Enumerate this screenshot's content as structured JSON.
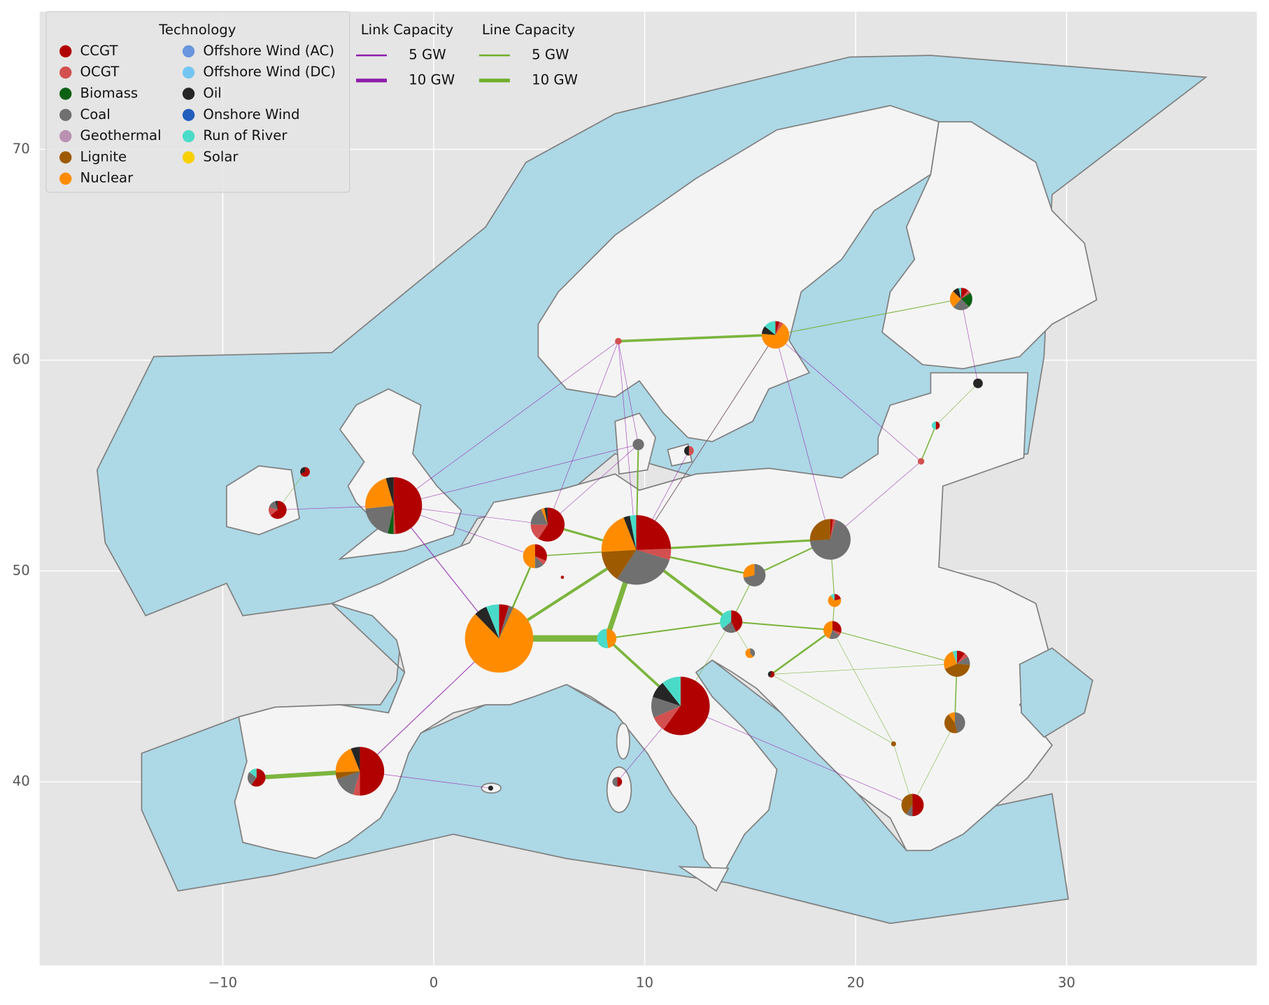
{
  "chart_data": {
    "type": "pie-map",
    "xlim": [
      -18.68,
      39.02
    ],
    "ylim": [
      31.29,
      76.53
    ],
    "xticks": [
      {
        "value": -10,
        "label": "−10"
      },
      0,
      10,
      20,
      30
    ],
    "yticks": [
      40,
      50,
      60,
      70
    ],
    "grid": true,
    "legend_title": "Technology",
    "technologies": [
      {
        "name": "CCGT",
        "color": "#b20101"
      },
      {
        "name": "OCGT",
        "color": "#d35050"
      },
      {
        "name": "Biomass",
        "color": "#0c6013"
      },
      {
        "name": "Coal",
        "color": "#707070"
      },
      {
        "name": "Geothermal",
        "color": "#ba91b1"
      },
      {
        "name": "Lignite",
        "color": "#9e5a01"
      },
      {
        "name": "Nuclear",
        "color": "#ff8c00"
      },
      {
        "name": "Offshore Wind (AC)",
        "color": "#6895dd"
      },
      {
        "name": "Offshore Wind (DC)",
        "color": "#74c6f2"
      },
      {
        "name": "Oil",
        "color": "#262626"
      },
      {
        "name": "Onshore Wind",
        "color": "#235ebc"
      },
      {
        "name": "Run of River",
        "color": "#4adbc8"
      },
      {
        "name": "Solar",
        "color": "#f9d002"
      }
    ],
    "link_legend": {
      "title": "Link Capacity",
      "color": "#8e1dab",
      "entries": [
        {
          "value": 5,
          "label": "5 GW"
        },
        {
          "value": 10,
          "label": "10 GW"
        }
      ]
    },
    "line_legend": {
      "title": "Line Capacity",
      "color": "#6fae2a",
      "entries": [
        {
          "value": 5,
          "label": "5 GW"
        },
        {
          "value": 10,
          "label": "10 GW"
        }
      ]
    },
    "buses": [
      {
        "x": 3.1,
        "y": 46.8,
        "generation": [
          6,
          0,
          0,
          3,
          0,
          0,
          105,
          0,
          0,
          8,
          0,
          8,
          0
        ]
      },
      {
        "x": 9.6,
        "y": 51.0,
        "generation": [
          33,
          7,
          0,
          40,
          0,
          20,
          27,
          0,
          0,
          4,
          0,
          4,
          0
        ]
      },
      {
        "x": -1.9,
        "y": 53.1,
        "generation": [
          44,
          1,
          3,
          18,
          0,
          0,
          20,
          0,
          0,
          4,
          0,
          0,
          0
        ]
      },
      {
        "x": 11.7,
        "y": 43.6,
        "generation": [
          57,
          8,
          0,
          11,
          0,
          0,
          0,
          0,
          0,
          9,
          0,
          10,
          0
        ]
      },
      {
        "x": -3.5,
        "y": 40.5,
        "generation": [
          33,
          3,
          0,
          10,
          0,
          3,
          13,
          0,
          0,
          4,
          0,
          0,
          0
        ]
      },
      {
        "x": 18.8,
        "y": 51.5,
        "generation": [
          1,
          1,
          0,
          32,
          0,
          12,
          0,
          0,
          0,
          0,
          0,
          0,
          0
        ]
      },
      {
        "x": 5.4,
        "y": 52.2,
        "generation": [
          19,
          5,
          0,
          6,
          0,
          0,
          1,
          0,
          0,
          1,
          0,
          0,
          0
        ]
      },
      {
        "x": 4.8,
        "y": 50.7,
        "generation": [
          5,
          1,
          0,
          2,
          0,
          0,
          8,
          0,
          0,
          0,
          0,
          0,
          0
        ]
      },
      {
        "x": 16.2,
        "y": 61.2,
        "generation": [
          1,
          1,
          0,
          0,
          0,
          0,
          14,
          0,
          0,
          2,
          0,
          3,
          0
        ]
      },
      {
        "x": 25.0,
        "y": 62.9,
        "generation": [
          1.5,
          0.7,
          3,
          3.5,
          0,
          0,
          3.5,
          0,
          0,
          1.3,
          0,
          0.5,
          0
        ]
      },
      {
        "x": 8.75,
        "y": 60.9,
        "generation": [
          0,
          1.2,
          0,
          0,
          0,
          0,
          0,
          0,
          0,
          0,
          0,
          0,
          0
        ]
      },
      {
        "x": 15.2,
        "y": 49.8,
        "generation": [
          0,
          0,
          0,
          10,
          0,
          0,
          4,
          0,
          0,
          0,
          0,
          0,
          0
        ]
      },
      {
        "x": 14.1,
        "y": 47.6,
        "generation": [
          6,
          0,
          0,
          3,
          0,
          0,
          0,
          0,
          0,
          0,
          0,
          5,
          0
        ]
      },
      {
        "x": 8.2,
        "y": 46.8,
        "generation": [
          0,
          0,
          0,
          0,
          0,
          0,
          5,
          0,
          0,
          0,
          0,
          5.5,
          0
        ]
      },
      {
        "x": 18.9,
        "y": 47.2,
        "generation": [
          2.7,
          0.5,
          0,
          1.8,
          0,
          0,
          4,
          0,
          0,
          0,
          0,
          0,
          0
        ]
      },
      {
        "x": 19.0,
        "y": 48.6,
        "generation": [
          1,
          0,
          0,
          0,
          0,
          0,
          3.2,
          0,
          0,
          0,
          0,
          0.5,
          0
        ]
      },
      {
        "x": 24.8,
        "y": 45.6,
        "generation": [
          2,
          1,
          0,
          2,
          0,
          8,
          5,
          0,
          0,
          0,
          0,
          1,
          0
        ]
      },
      {
        "x": 24.7,
        "y": 42.8,
        "generation": [
          0,
          0,
          0,
          5.5,
          0,
          5.3,
          1.2,
          0,
          0,
          0,
          0,
          0,
          0
        ]
      },
      {
        "x": 22.7,
        "y": 38.9,
        "generation": [
          7,
          0,
          0,
          1.4,
          0,
          5.6,
          0,
          0,
          0,
          0,
          0,
          0,
          0
        ]
      },
      {
        "x": -8.4,
        "y": 40.2,
        "generation": [
          5.4,
          0,
          0,
          2.3,
          0,
          0,
          0,
          0,
          0,
          0,
          0,
          1.3,
          0
        ]
      },
      {
        "x": -7.4,
        "y": 52.9,
        "generation": [
          5.8,
          1.4,
          0,
          1.4,
          0,
          0,
          0,
          0,
          0,
          0.4,
          0,
          0,
          0
        ]
      },
      {
        "x": -6.1,
        "y": 54.7,
        "generation": [
          1.8,
          0,
          0,
          0,
          0,
          0,
          0,
          0,
          0,
          0.8,
          0,
          0,
          0
        ]
      },
      {
        "x": 9.7,
        "y": 56.0,
        "generation": [
          0,
          0,
          0,
          3.6,
          0,
          0,
          0,
          0,
          0,
          0,
          0,
          0,
          0
        ]
      },
      {
        "x": 12.1,
        "y": 55.7,
        "generation": [
          0,
          1.3,
          0,
          0,
          0,
          0,
          0,
          0,
          0,
          1.3,
          0,
          0,
          0
        ]
      },
      {
        "x": 25.8,
        "y": 58.9,
        "generation": [
          0,
          0,
          0,
          0,
          0,
          0,
          0,
          0,
          0,
          2.6,
          0,
          0,
          0
        ]
      },
      {
        "x": 23.8,
        "y": 56.9,
        "generation": [
          0.9,
          0,
          0,
          0,
          0,
          0,
          0,
          0,
          0,
          0,
          0,
          0.9,
          0
        ]
      },
      {
        "x": 23.1,
        "y": 55.2,
        "generation": [
          0,
          1.2,
          0,
          0,
          0,
          0,
          0,
          0,
          0,
          0,
          0,
          0,
          0
        ]
      },
      {
        "x": 15.0,
        "y": 46.1,
        "generation": [
          0,
          0,
          0,
          1,
          0,
          0,
          1.6,
          0,
          0,
          0,
          0,
          0,
          0
        ]
      },
      {
        "x": 16.0,
        "y": 45.1,
        "generation": [
          0.7,
          0,
          0,
          0,
          0,
          0,
          0,
          0,
          0,
          0.5,
          0,
          0,
          0
        ]
      },
      {
        "x": 21.8,
        "y": 41.8,
        "generation": [
          0,
          0,
          0,
          0,
          0,
          0.7,
          0,
          0,
          0,
          0,
          0,
          0,
          0
        ]
      },
      {
        "x": 8.7,
        "y": 40.0,
        "generation": [
          1.3,
          0,
          0,
          1.3,
          0,
          0,
          0,
          0,
          0,
          0,
          0,
          0,
          0
        ]
      },
      {
        "x": 2.7,
        "y": 39.7,
        "generation": [
          0,
          0,
          0,
          0,
          0,
          0,
          0,
          0,
          0,
          0.7,
          0,
          0,
          0
        ]
      },
      {
        "x": 6.1,
        "y": 49.7,
        "generation": [
          0.3,
          0,
          0,
          0,
          0,
          0,
          0,
          0,
          0,
          0,
          0,
          0,
          0
        ]
      }
    ],
    "lines": [
      {
        "x": [
          3.1,
          8.2
        ],
        "y": [
          46.8,
          46.8
        ],
        "capacity": 18
      },
      {
        "x": [
          3.1,
          9.6
        ],
        "y": [
          46.8,
          51.0
        ],
        "capacity": 8
      },
      {
        "x": [
          3.1,
          4.8
        ],
        "y": [
          46.8,
          50.7
        ],
        "capacity": 5
      },
      {
        "x": [
          8.2,
          9.6
        ],
        "y": [
          46.8,
          51.0
        ],
        "capacity": 14
      },
      {
        "x": [
          9.6,
          5.4
        ],
        "y": [
          51.0,
          52.2
        ],
        "capacity": 6
      },
      {
        "x": [
          9.6,
          4.8
        ],
        "y": [
          51.0,
          50.7
        ],
        "capacity": 3
      },
      {
        "x": [
          9.6,
          18.8
        ],
        "y": [
          51.0,
          51.5
        ],
        "capacity": 6
      },
      {
        "x": [
          9.6,
          15.2
        ],
        "y": [
          51.0,
          49.8
        ],
        "capacity": 5
      },
      {
        "x": [
          9.6,
          14.1
        ],
        "y": [
          51.0,
          47.6
        ],
        "capacity": 8
      },
      {
        "x": [
          9.6,
          9.7
        ],
        "y": [
          51.0,
          56.0
        ],
        "capacity": 4
      },
      {
        "x": [
          9.6,
          16.2
        ],
        "y": [
          51.0,
          61.2
        ],
        "capacity": 2
      },
      {
        "x": [
          8.2,
          11.7
        ],
        "y": [
          46.8,
          43.6
        ],
        "capacity": 7
      },
      {
        "x": [
          8.2,
          14.1
        ],
        "y": [
          46.8,
          47.6
        ],
        "capacity": 4
      },
      {
        "x": [
          11.7,
          14.1
        ],
        "y": [
          43.6,
          47.6
        ],
        "capacity": 1
      },
      {
        "x": [
          14.1,
          18.9
        ],
        "y": [
          47.6,
          47.2
        ],
        "capacity": 4
      },
      {
        "x": [
          14.1,
          15.2
        ],
        "y": [
          47.6,
          49.8
        ],
        "capacity": 2
      },
      {
        "x": [
          15.2,
          18.8
        ],
        "y": [
          49.8,
          51.5
        ],
        "capacity": 4
      },
      {
        "x": [
          18.8,
          19.0
        ],
        "y": [
          51.5,
          48.6
        ],
        "capacity": 2
      },
      {
        "x": [
          19.0,
          18.9
        ],
        "y": [
          48.6,
          47.2
        ],
        "capacity": 2
      },
      {
        "x": [
          18.9,
          16.0
        ],
        "y": [
          47.2,
          45.1
        ],
        "capacity": 5
      },
      {
        "x": [
          18.9,
          24.8
        ],
        "y": [
          47.2,
          45.6
        ],
        "capacity": 2
      },
      {
        "x": [
          18.9,
          21.8
        ],
        "y": [
          47.2,
          41.8
        ],
        "capacity": 1
      },
      {
        "x": [
          24.8,
          24.7
        ],
        "y": [
          45.6,
          42.8
        ],
        "capacity": 3
      },
      {
        "x": [
          24.7,
          22.7
        ],
        "y": [
          42.8,
          38.9
        ],
        "capacity": 1
      },
      {
        "x": [
          21.8,
          22.7
        ],
        "y": [
          41.8,
          38.9
        ],
        "capacity": 1
      },
      {
        "x": [
          16.0,
          21.8
        ],
        "y": [
          45.1,
          41.8
        ],
        "capacity": 1
      },
      {
        "x": [
          16.0,
          24.8
        ],
        "y": [
          45.1,
          45.6
        ],
        "capacity": 1
      },
      {
        "x": [
          8.75,
          16.2
        ],
        "y": [
          60.9,
          61.2
        ],
        "capacity": 7
      },
      {
        "x": [
          16.2,
          25.0
        ],
        "y": [
          61.2,
          62.9
        ],
        "capacity": 2
      },
      {
        "x": [
          -8.4,
          -3.5
        ],
        "y": [
          40.2,
          40.5
        ],
        "capacity": 12
      },
      {
        "x": [
          25.8,
          23.8
        ],
        "y": [
          58.9,
          56.9
        ],
        "capacity": 1
      },
      {
        "x": [
          23.8,
          23.1
        ],
        "y": [
          56.9,
          55.2
        ],
        "capacity": 3
      },
      {
        "x": [
          14.1,
          15.0
        ],
        "y": [
          47.6,
          46.1
        ],
        "capacity": 1
      },
      {
        "x": [
          -7.4,
          -6.1
        ],
        "y": [
          52.9,
          54.7
        ],
        "capacity": 1
      }
    ],
    "links": [
      {
        "x": [
          -1.9,
          3.1
        ],
        "y": [
          53.1,
          46.8
        ],
        "capacity": 2
      },
      {
        "x": [
          -1.9,
          5.4
        ],
        "y": [
          53.1,
          52.2
        ],
        "capacity": 1
      },
      {
        "x": [
          -1.9,
          4.8
        ],
        "y": [
          53.1,
          50.7
        ],
        "capacity": 1
      },
      {
        "x": [
          -1.9,
          8.75
        ],
        "y": [
          53.1,
          60.9
        ],
        "capacity": 1
      },
      {
        "x": [
          -1.9,
          -7.4
        ],
        "y": [
          53.1,
          52.9
        ],
        "capacity": 0.5
      },
      {
        "x": [
          -1.9,
          9.7
        ],
        "y": [
          53.1,
          56.0
        ],
        "capacity": 0.5
      },
      {
        "x": [
          8.75,
          5.4
        ],
        "y": [
          60.9,
          52.2
        ],
        "capacity": 0.7
      },
      {
        "x": [
          8.75,
          9.6
        ],
        "y": [
          60.9,
          51.0
        ],
        "capacity": 0.7
      },
      {
        "x": [
          8.75,
          9.7
        ],
        "y": [
          60.9,
          56.0
        ],
        "capacity": 0.7
      },
      {
        "x": [
          16.2,
          9.6
        ],
        "y": [
          61.2,
          51.0
        ],
        "capacity": 0.6
      },
      {
        "x": [
          16.2,
          18.8
        ],
        "y": [
          61.2,
          51.5
        ],
        "capacity": 0.6
      },
      {
        "x": [
          16.2,
          23.1
        ],
        "y": [
          61.2,
          55.2
        ],
        "capacity": 0.6
      },
      {
        "x": [
          25.0,
          25.8
        ],
        "y": [
          62.9,
          58.9
        ],
        "capacity": 0.7
      },
      {
        "x": [
          23.1,
          18.8
        ],
        "y": [
          55.2,
          51.5
        ],
        "capacity": 1
      },
      {
        "x": [
          11.7,
          8.7
        ],
        "y": [
          43.6,
          40.0
        ],
        "capacity": 1
      },
      {
        "x": [
          11.7,
          22.7
        ],
        "y": [
          43.6,
          38.9
        ],
        "capacity": 0.5
      },
      {
        "x": [
          -3.5,
          2.7
        ],
        "y": [
          40.5,
          39.7
        ],
        "capacity": 0.3
      },
      {
        "x": [
          -3.5,
          3.1
        ],
        "y": [
          40.5,
          46.8
        ],
        "capacity": 2
      },
      {
        "x": [
          9.7,
          5.4
        ],
        "y": [
          56.0,
          52.2
        ],
        "capacity": 0.7
      },
      {
        "x": [
          12.1,
          9.6
        ],
        "y": [
          55.7,
          51.0
        ],
        "capacity": 0.6
      }
    ]
  }
}
